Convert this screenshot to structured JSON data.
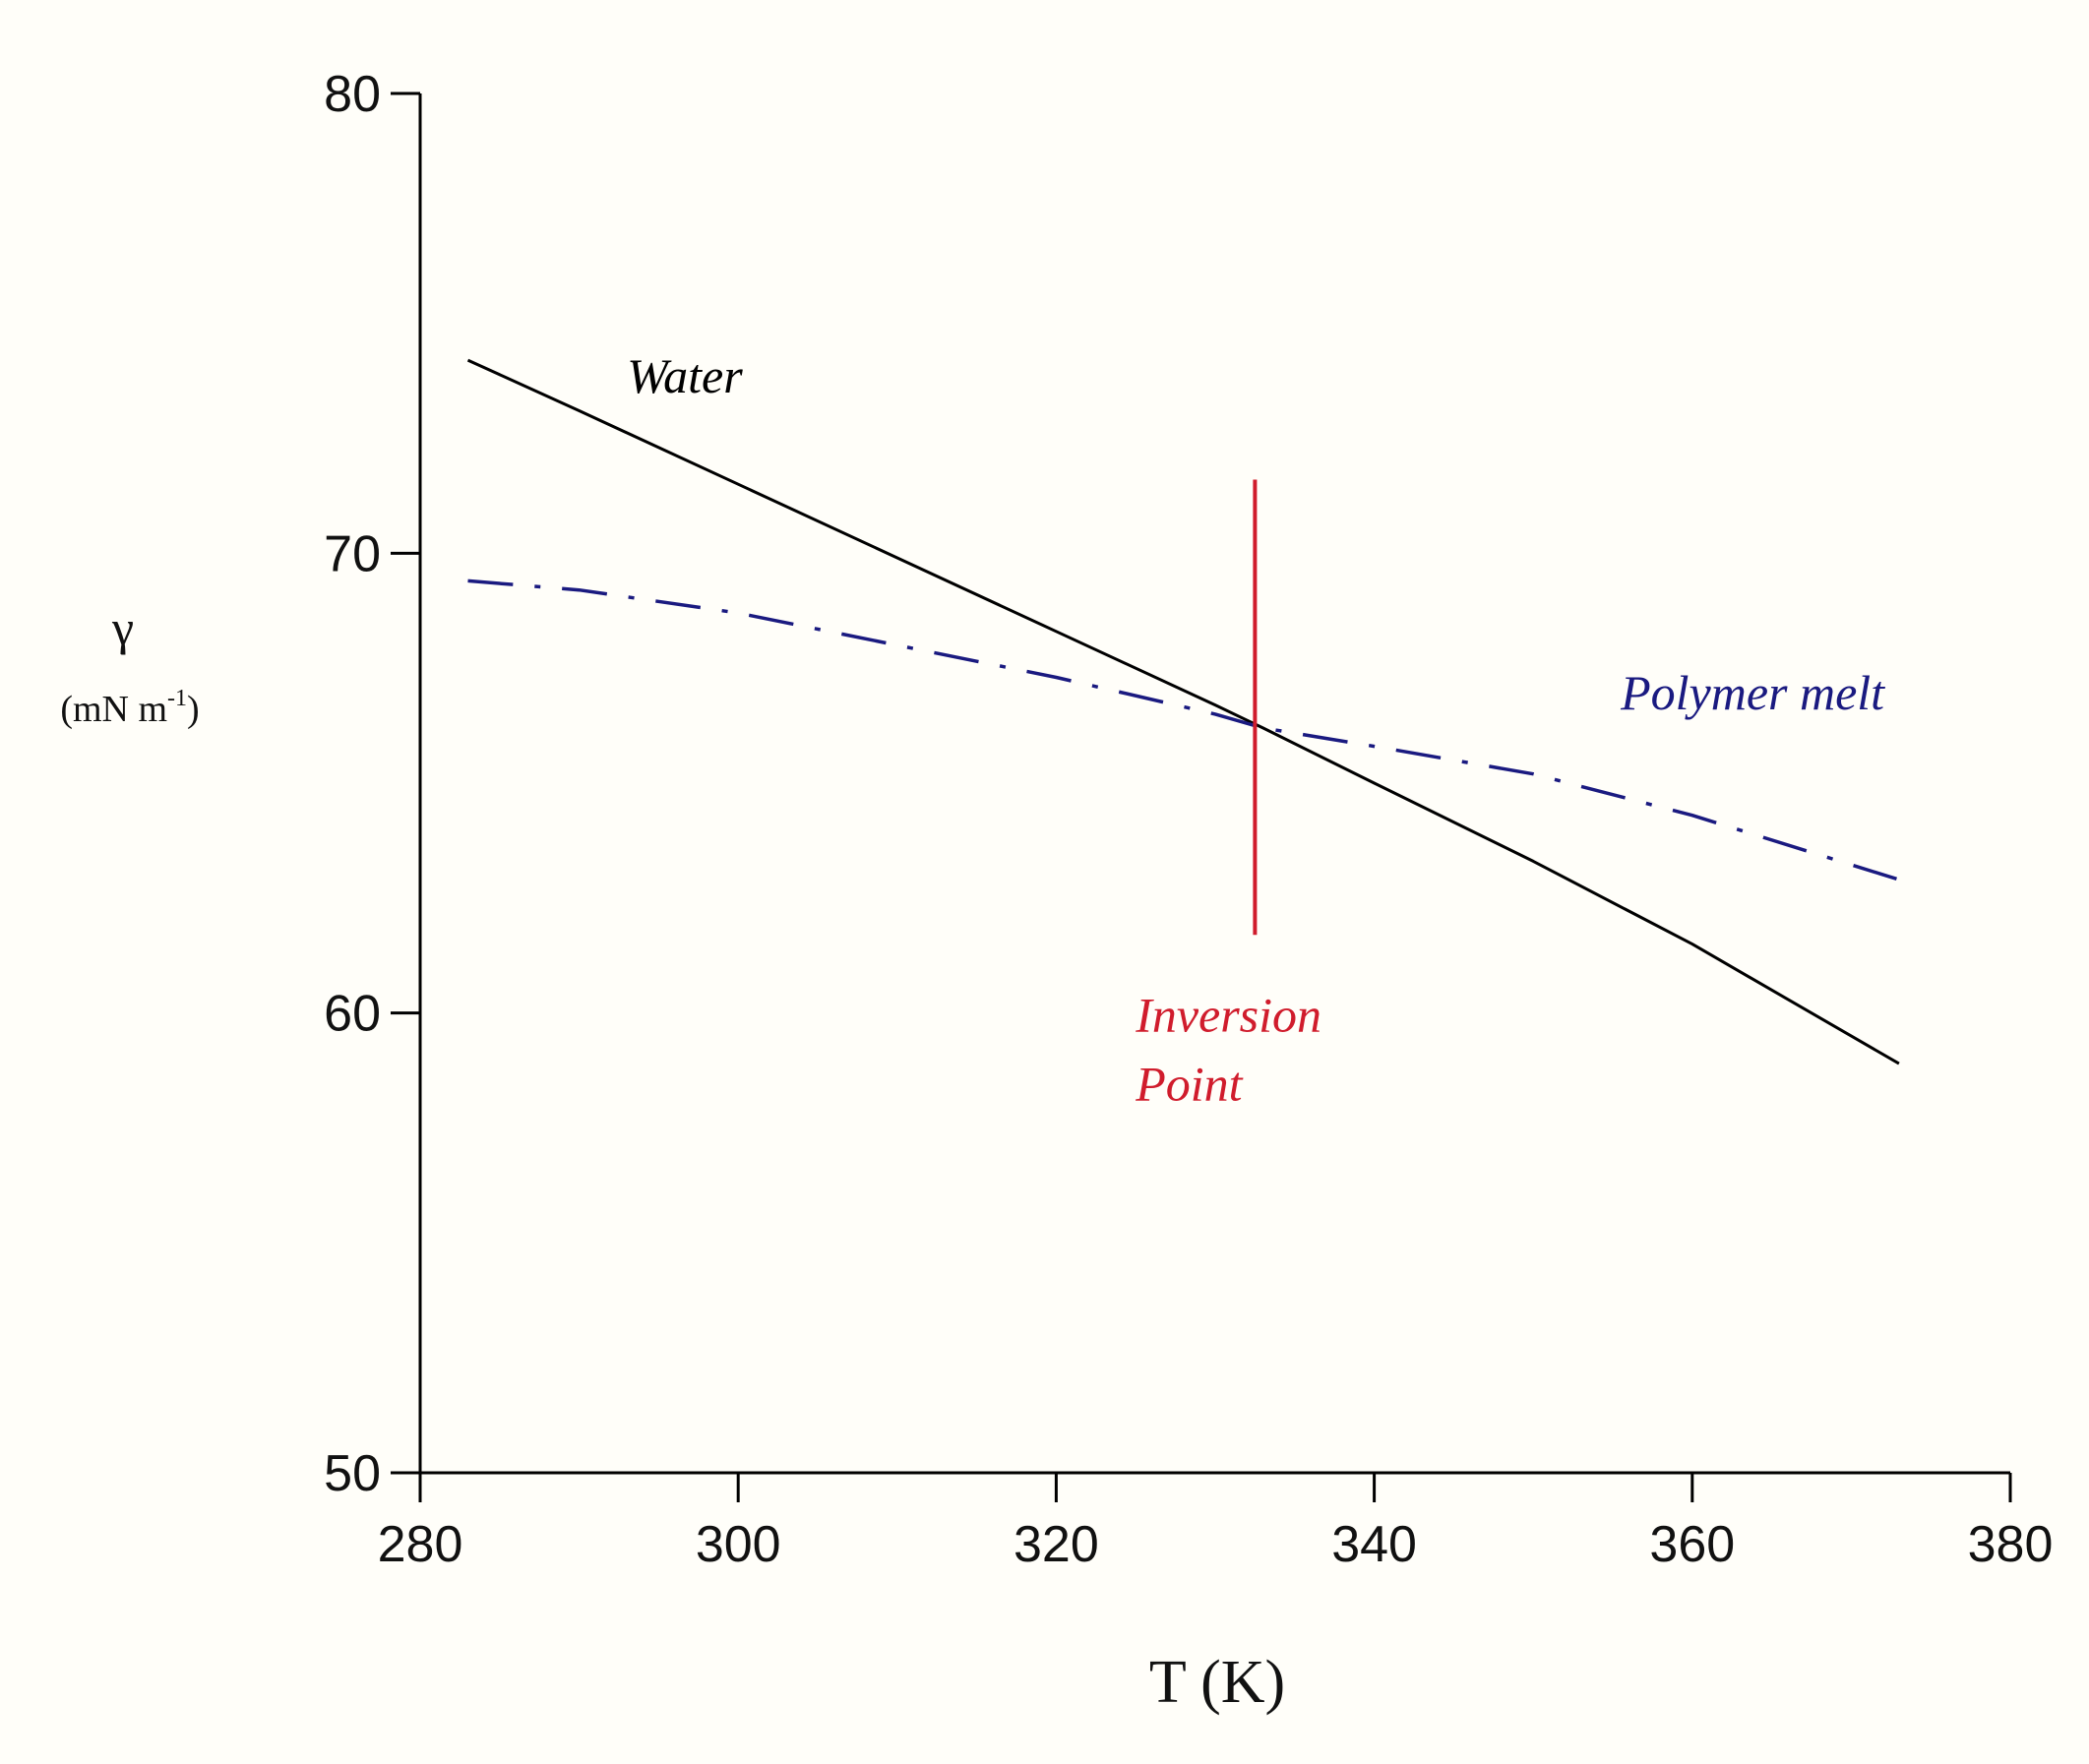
{
  "chart_data": {
    "type": "line",
    "xlabel": "T (K)",
    "ylabel": "γ",
    "ylabel_unit": "(mN m",
    "ylabel_unit_sup": "-1",
    "ylabel_unit_end": ")",
    "xlim": [
      280,
      380
    ],
    "ylim": [
      50,
      80
    ],
    "x_ticks": [
      280,
      300,
      320,
      340,
      360,
      380
    ],
    "y_ticks": [
      50,
      60,
      70,
      80
    ],
    "grid": false,
    "colors": {
      "water": "#000000",
      "polymer": "#1a1a80",
      "inversion": "#d01c2c",
      "axis": "#000000"
    },
    "series": [
      {
        "name": "Water",
        "style": "solid",
        "x": [
          283,
          290,
          300,
          310,
          320,
          330,
          333,
          340,
          350,
          360,
          373
        ],
        "y": [
          74.2,
          73.1,
          71.5,
          69.9,
          68.3,
          66.7,
          66.2,
          65.0,
          63.3,
          61.5,
          58.9
        ]
      },
      {
        "name": "Polymer melt",
        "style": "dash-dot",
        "x": [
          283,
          290,
          300,
          310,
          320,
          330,
          333,
          340,
          350,
          360,
          373
        ],
        "y": [
          69.4,
          69.2,
          68.7,
          68.0,
          67.3,
          66.5,
          66.2,
          65.8,
          65.2,
          64.3,
          62.9
        ]
      }
    ],
    "inversion_line": {
      "x": 332.5,
      "y_from": 61.7,
      "y_to": 71.6
    },
    "annotations": [
      {
        "text": "Water",
        "x": 293,
        "y": 73.5,
        "color": "water"
      },
      {
        "text": "Polymer melt",
        "x": 355.5,
        "y": 66.6,
        "color": "polymer"
      },
      {
        "text": "Inversion",
        "x": 325,
        "y": 59.6,
        "color": "inversion"
      },
      {
        "text": "Point",
        "x": 325,
        "y": 58.1,
        "color": "inversion"
      }
    ]
  }
}
